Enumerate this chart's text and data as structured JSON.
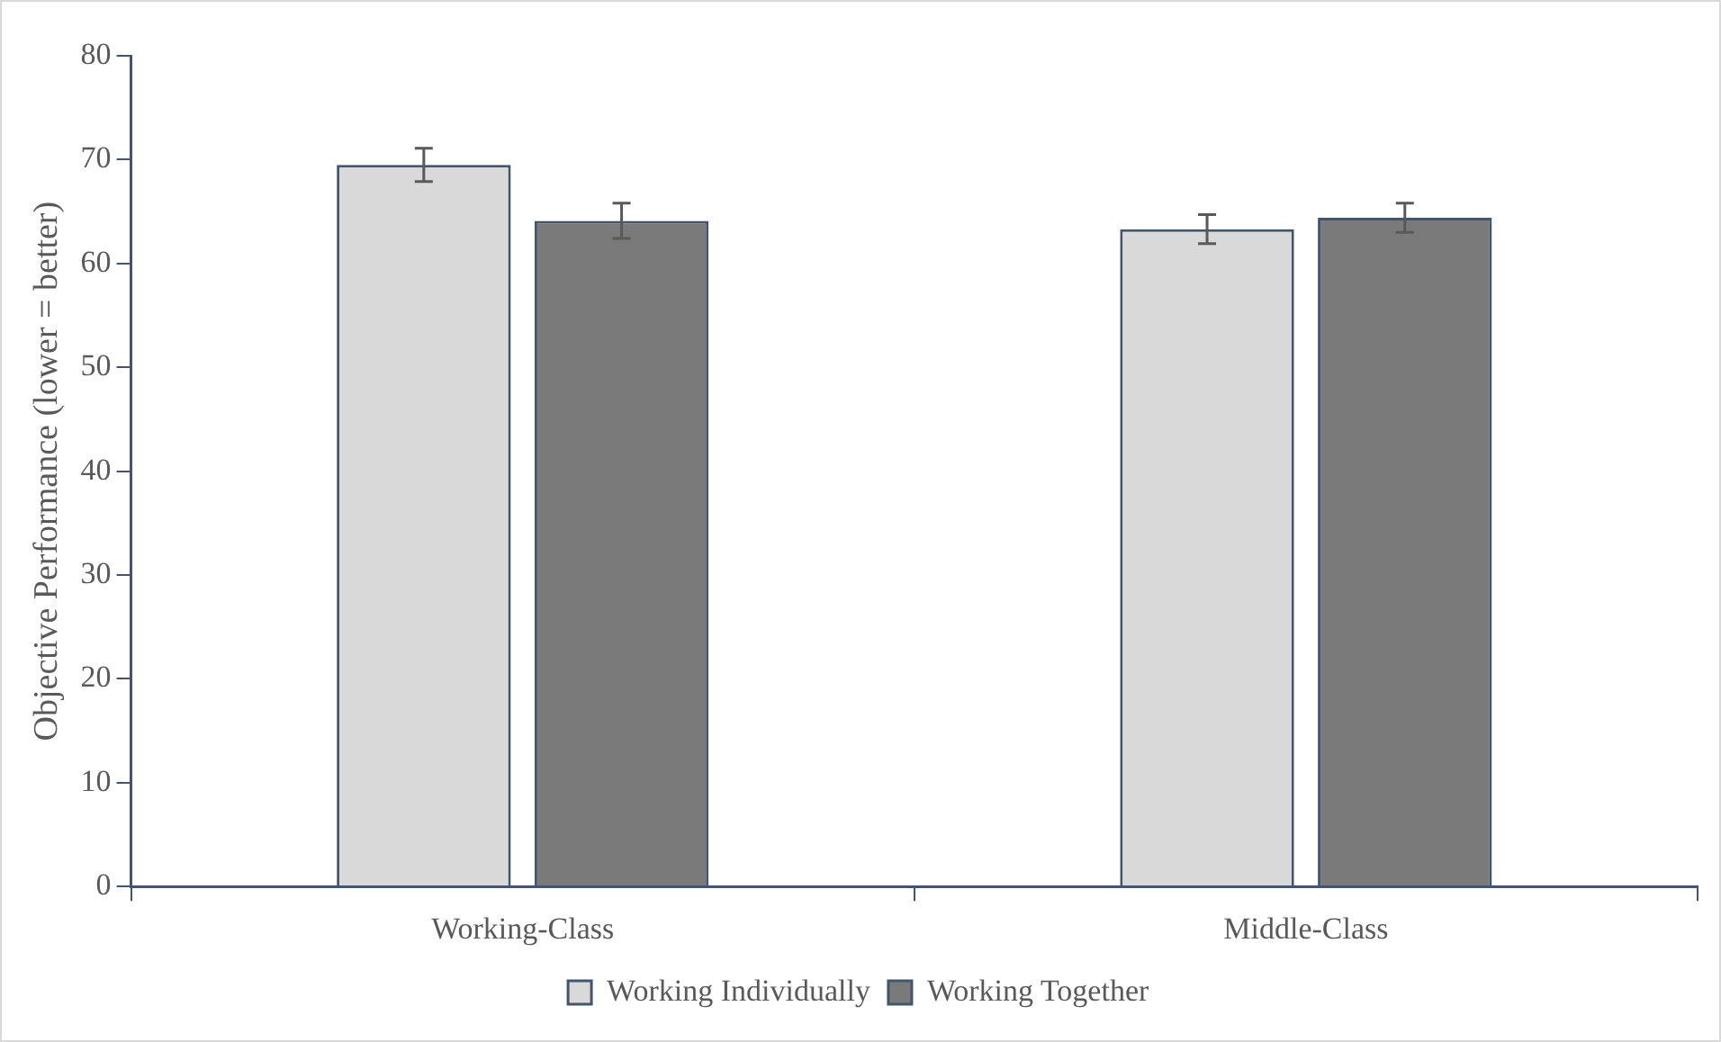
{
  "chart_data": {
    "type": "bar",
    "ylabel": "Objective Performance (lower = better)",
    "categories": [
      "Working-Class",
      "Middle-Class"
    ],
    "series": [
      {
        "name": "Working Individually",
        "color": "#d9d9d9",
        "values": [
          69.5,
          63.3
        ],
        "errors": [
          1.6,
          1.4
        ]
      },
      {
        "name": "Working Together",
        "color": "#7a7a7a",
        "values": [
          64.1,
          64.4
        ],
        "errors": [
          1.7,
          1.4
        ]
      }
    ],
    "ylim": [
      0,
      80
    ],
    "yticks": [
      0,
      10,
      20,
      30,
      40,
      50,
      60,
      70,
      80
    ],
    "grid": false,
    "legend": "bottom"
  }
}
